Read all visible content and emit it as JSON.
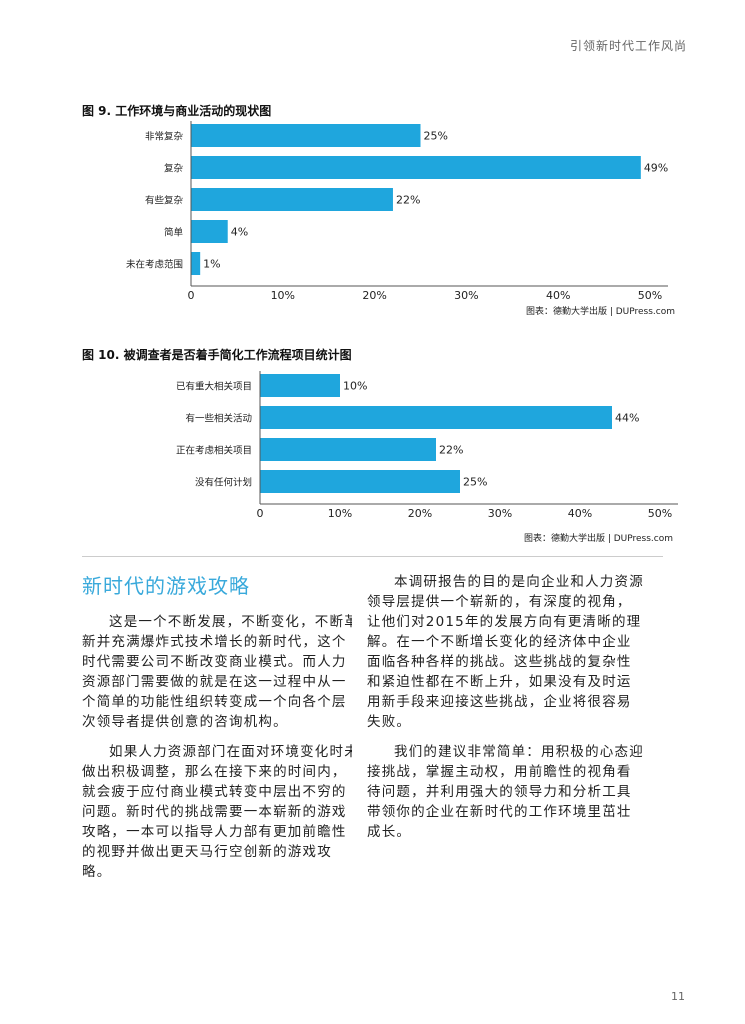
{
  "header": {
    "running_title": "引领新时代工作风尚"
  },
  "chart_data": [
    {
      "type": "bar",
      "orientation": "horizontal",
      "title": "图 9. 工作环境与商业活动的现状图",
      "categories": [
        "非常复杂",
        "复杂",
        "有些复杂",
        "简单",
        "未在考虑范围"
      ],
      "values": [
        25,
        49,
        22,
        4,
        1
      ],
      "data_labels": [
        "25%",
        "49%",
        "22%",
        "4%",
        "1%"
      ],
      "xlim": [
        0,
        50
      ],
      "ticks": [
        "0",
        "10%",
        "20%",
        "30%",
        "40%",
        "50%"
      ],
      "grid": false,
      "bar_color": "#1fa6dd",
      "source": "图表：德勤大学出版 | DUPress.com"
    },
    {
      "type": "bar",
      "orientation": "horizontal",
      "title": "图 10. 被调查者是否着手简化工作流程项目统计图",
      "categories": [
        "已有重大相关项目",
        "有一些相关活动",
        "正在考虑相关项目",
        "没有任何计划"
      ],
      "values": [
        10,
        44,
        22,
        25
      ],
      "data_labels": [
        "10%",
        "44%",
        "22%",
        "25%"
      ],
      "xlim": [
        0,
        50
      ],
      "ticks": [
        "0",
        "10%",
        "20%",
        "30%",
        "40%",
        "50%"
      ],
      "grid": false,
      "bar_color": "#1fa6dd",
      "source": "图表：德勤大学出版 | DUPress.com"
    }
  ],
  "section": {
    "heading": "新时代的游戏攻略",
    "left_paragraphs": [
      [
        "这是一个不断发展，不断变化，不断革",
        "新并充满爆炸式技术增长的新时代，这个",
        "时代需要公司不断改变商业模式。而人力",
        "资源部门需要做的就是在这一过程中从一",
        "个简单的功能性组织转变成一个向各个层",
        "次领导者提供创意的咨询机构。"
      ],
      [
        "如果人力资源部门在面对环境变化时未",
        "做出积极调整，那么在接下来的时间内，",
        "就会疲于应付商业模式转变中层出不穷的",
        "问题。新时代的挑战需要一本崭新的游戏",
        "攻略，一本可以指导人力部有更加前瞻性",
        "的视野并做出更天马行空创新的游戏攻",
        "略。"
      ]
    ],
    "right_paragraphs": [
      [
        "本调研报告的目的是向企业和人力资源",
        "领导层提供一个崭新的，有深度的视角，",
        "让他们对2015年的发展方向有更清晰的理",
        "解。在一个不断增长变化的经济体中企业",
        "面临各种各样的挑战。这些挑战的复杂性",
        "和紧迫性都在不断上升，如果没有及时运",
        "用新手段来迎接这些挑战，企业将很容易",
        "失败。"
      ],
      [
        "我们的建议非常简单：用积极的心态迎",
        "接挑战，掌握主动权，用前瞻性的视角看",
        "待问题，并利用强大的领导力和分析工具",
        "带领你的企业在新时代的工作环境里茁壮",
        "成长。"
      ]
    ]
  },
  "footer": {
    "page_number": "11"
  }
}
